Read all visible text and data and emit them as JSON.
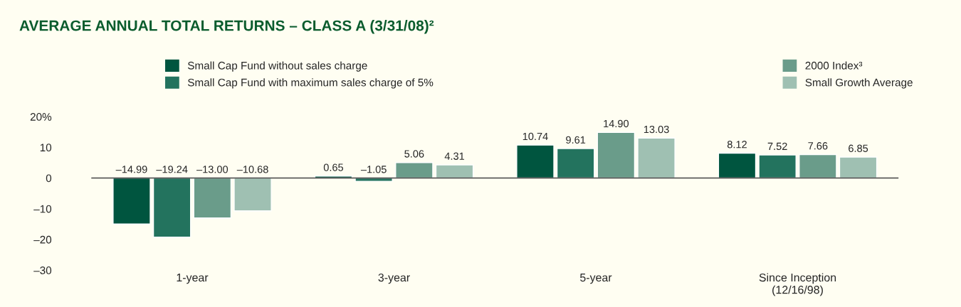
{
  "chart_data": {
    "type": "bar",
    "title": "AVERAGE ANNUAL TOTAL RETURNS – CLASS A (3/31/08)²",
    "categories": [
      "1-year",
      "3-year",
      "5-year",
      "Since Inception\n(12/16/98)"
    ],
    "series": [
      {
        "name": "Small Cap Fund without sales charge",
        "color": "#00553f",
        "values": [
          -14.99,
          0.65,
          10.74,
          8.12
        ],
        "value_labels": [
          "–14.99",
          "0.65",
          "10.74",
          "8.12"
        ]
      },
      {
        "name": "Small Cap Fund with maximum sales charge of 5%",
        "color": "#23735e",
        "values": [
          -19.24,
          -1.05,
          9.61,
          7.52
        ],
        "value_labels": [
          "–19.24",
          "–1.05",
          "9.61",
          "7.52"
        ]
      },
      {
        "name": "2000 Index³",
        "color": "#6a9c8a",
        "values": [
          -13.0,
          5.06,
          14.9,
          7.66
        ],
        "value_labels": [
          "–13.00",
          "5.06",
          "14.90",
          "7.66"
        ]
      },
      {
        "name": "Small Growth Average",
        "color": "#9fc0b2",
        "values": [
          -10.68,
          4.31,
          13.03,
          6.85
        ],
        "value_labels": [
          "–10.68",
          "4.31",
          "13.03",
          "6.85"
        ]
      }
    ],
    "ylim": [
      -30,
      20
    ],
    "yticks": [
      {
        "value": 20,
        "label": "20%"
      },
      10,
      0,
      {
        "value": -10,
        "label": "–10"
      },
      {
        "value": -20,
        "label": "–20"
      },
      {
        "value": -30,
        "label": "–30"
      }
    ],
    "ref_lines": [
      {
        "axis": "y",
        "value": 0,
        "color": "#444444"
      }
    ],
    "grid": false,
    "legend": "top"
  }
}
